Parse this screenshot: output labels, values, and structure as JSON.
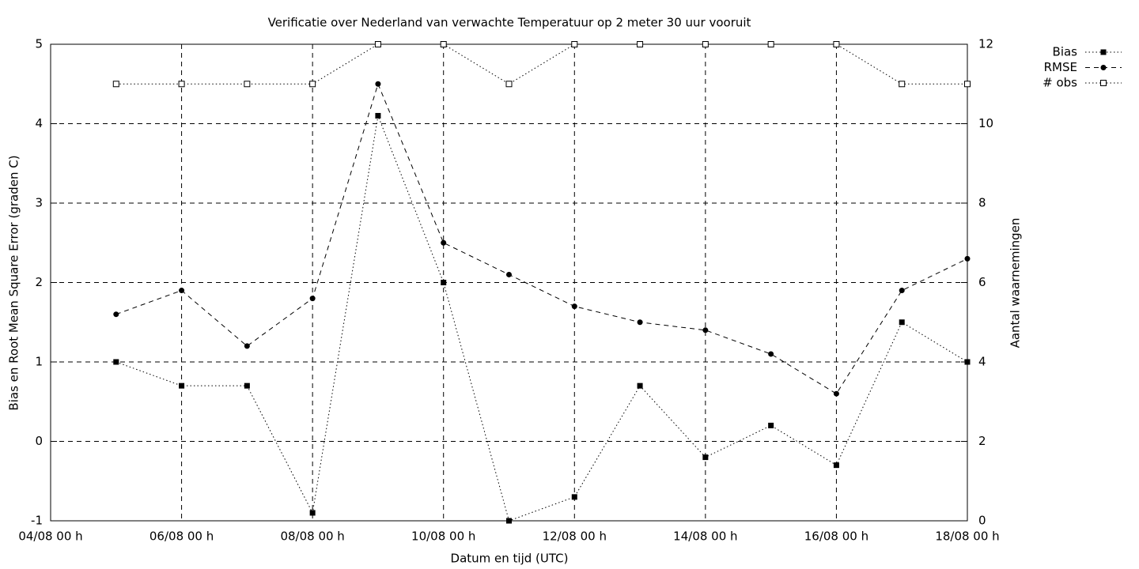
{
  "chart_data": {
    "type": "line",
    "title": "Verificatie over Nederland van verwachte Temperatuur op 2 meter 30 uur vooruit",
    "x_label": "Datum en tijd (UTC)",
    "y_label": "Bias en Root Mean Square Error (graden C)",
    "y2_label": "Aantal waarnemingen",
    "x": [
      "05/08 00 h",
      "06/08 00 h",
      "07/08 00 h",
      "08/08 00 h",
      "09/08 00 h",
      "10/08 00 h",
      "11/08 00 h",
      "12/08 00 h",
      "13/08 00 h",
      "14/08 00 h",
      "15/08 00 h",
      "16/08 00 h",
      "17/08 00 h",
      "18/08 00 h"
    ],
    "xlim": [
      "04/08 00 h",
      "18/08 00 h"
    ],
    "xticks": [
      "04/08 00 h",
      "06/08 00 h",
      "08/08 00 h",
      "10/08 00 h",
      "12/08 00 h",
      "14/08 00 h",
      "16/08 00 h",
      "18/08 00 h"
    ],
    "ylim": [
      -1,
      5
    ],
    "yticks": [
      -1,
      0,
      1,
      2,
      3,
      4,
      5
    ],
    "y2lim": [
      0,
      12
    ],
    "y2ticks": [
      0,
      2,
      4,
      6,
      8,
      10,
      12
    ],
    "grid": true,
    "legend": "top-right-outside",
    "series": [
      {
        "name": "Bias",
        "color": "#000000",
        "dash": "dotted",
        "marker": "filled-square",
        "values": [
          1.0,
          0.7,
          0.7,
          -0.9,
          4.1,
          2.0,
          -1.0,
          -0.7,
          0.7,
          -0.2,
          0.2,
          -0.3,
          1.5,
          1.0
        ]
      },
      {
        "name": "RMSE",
        "color": "#000000",
        "dash": "dashed",
        "marker": "filled-circle",
        "values": [
          1.6,
          1.9,
          1.2,
          1.8,
          4.5,
          2.5,
          2.1,
          1.7,
          1.5,
          1.4,
          1.1,
          0.6,
          1.9,
          2.3
        ]
      },
      {
        "name": "# obs",
        "color": "#000000",
        "dash": "dotted",
        "marker": "open-square",
        "axis": "y2",
        "values": [
          11,
          11,
          11,
          11,
          12,
          12,
          11,
          12,
          12,
          12,
          12,
          12,
          11,
          11
        ]
      }
    ]
  }
}
